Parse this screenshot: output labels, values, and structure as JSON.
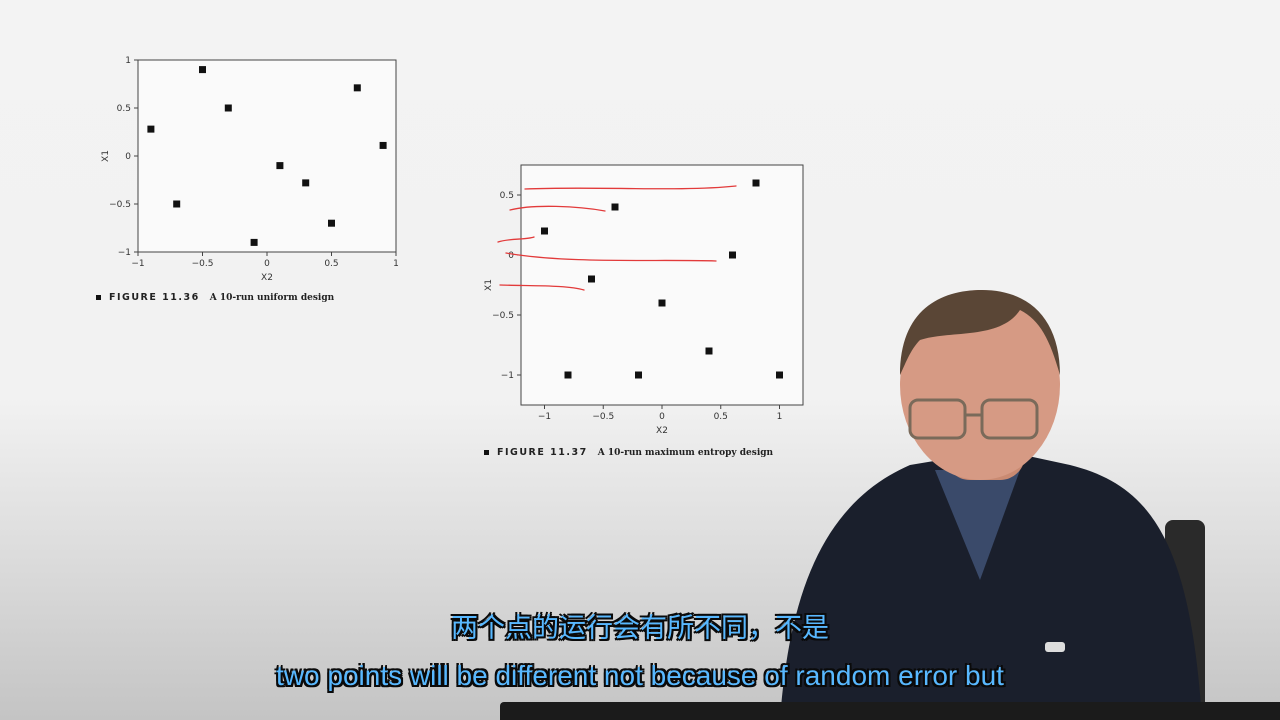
{
  "chart_data": [
    {
      "type": "scatter",
      "id": "figure-11-36",
      "title": "",
      "xlabel": "X2",
      "ylabel": "X1",
      "xlim": [
        -1,
        1
      ],
      "ylim": [
        -1,
        1
      ],
      "xticks": [
        "−1",
        "−0.5",
        "0",
        "0.5",
        "1"
      ],
      "xtick_values": [
        -1,
        -0.5,
        0,
        0.5,
        1
      ],
      "yticks": [
        "1",
        "0.5",
        "0",
        "−0.5",
        "−1"
      ],
      "ytick_values": [
        1,
        0.5,
        0,
        -0.5,
        -1
      ],
      "x": [
        -0.9,
        -0.7,
        -0.5,
        -0.3,
        -0.1,
        0.1,
        0.3,
        0.5,
        0.7,
        0.9
      ],
      "y": [
        0.28,
        -0.5,
        0.9,
        0.5,
        -0.9,
        -0.1,
        -0.28,
        -0.7,
        0.71,
        0.11
      ],
      "grid": false
    },
    {
      "type": "scatter",
      "id": "figure-11-37",
      "title": "",
      "xlabel": "X2",
      "ylabel": "X1",
      "xlim": [
        -1.2,
        1.2
      ],
      "ylim": [
        -1.25,
        0.75
      ],
      "xticks": [
        "−1",
        "−0.5",
        "0",
        "0.5",
        "1"
      ],
      "xtick_values": [
        -1,
        -0.5,
        0,
        0.5,
        1
      ],
      "yticks": [
        "0.5",
        "0",
        "−0.5",
        "−1"
      ],
      "ytick_values": [
        0.5,
        0,
        -0.5,
        -1
      ],
      "x": [
        0.8,
        -0.4,
        -1.0,
        0.6,
        -0.6,
        0.0,
        0.4,
        -0.8,
        -0.2,
        1.0
      ],
      "y": [
        0.6,
        0.4,
        0.2,
        0.0,
        -0.2,
        -0.4,
        -0.8,
        -1.0,
        -1.0,
        -1.0
      ],
      "grid": false,
      "annotations": "red hand-drawn underline strokes"
    }
  ],
  "captions": {
    "fig1": {
      "number": "FIGURE 11.36",
      "text": "A 10-run uniform design"
    },
    "fig2": {
      "number": "FIGURE 11.37",
      "text": "A 10-run maximum entropy design"
    }
  },
  "subtitles": {
    "chinese": "两个点的运行会有所不同，不是",
    "english": "two points will be different not because of random error but"
  },
  "colors": {
    "subtitle": "#58b8ff",
    "annotation": "#e23a3a",
    "marker": "#111111"
  }
}
